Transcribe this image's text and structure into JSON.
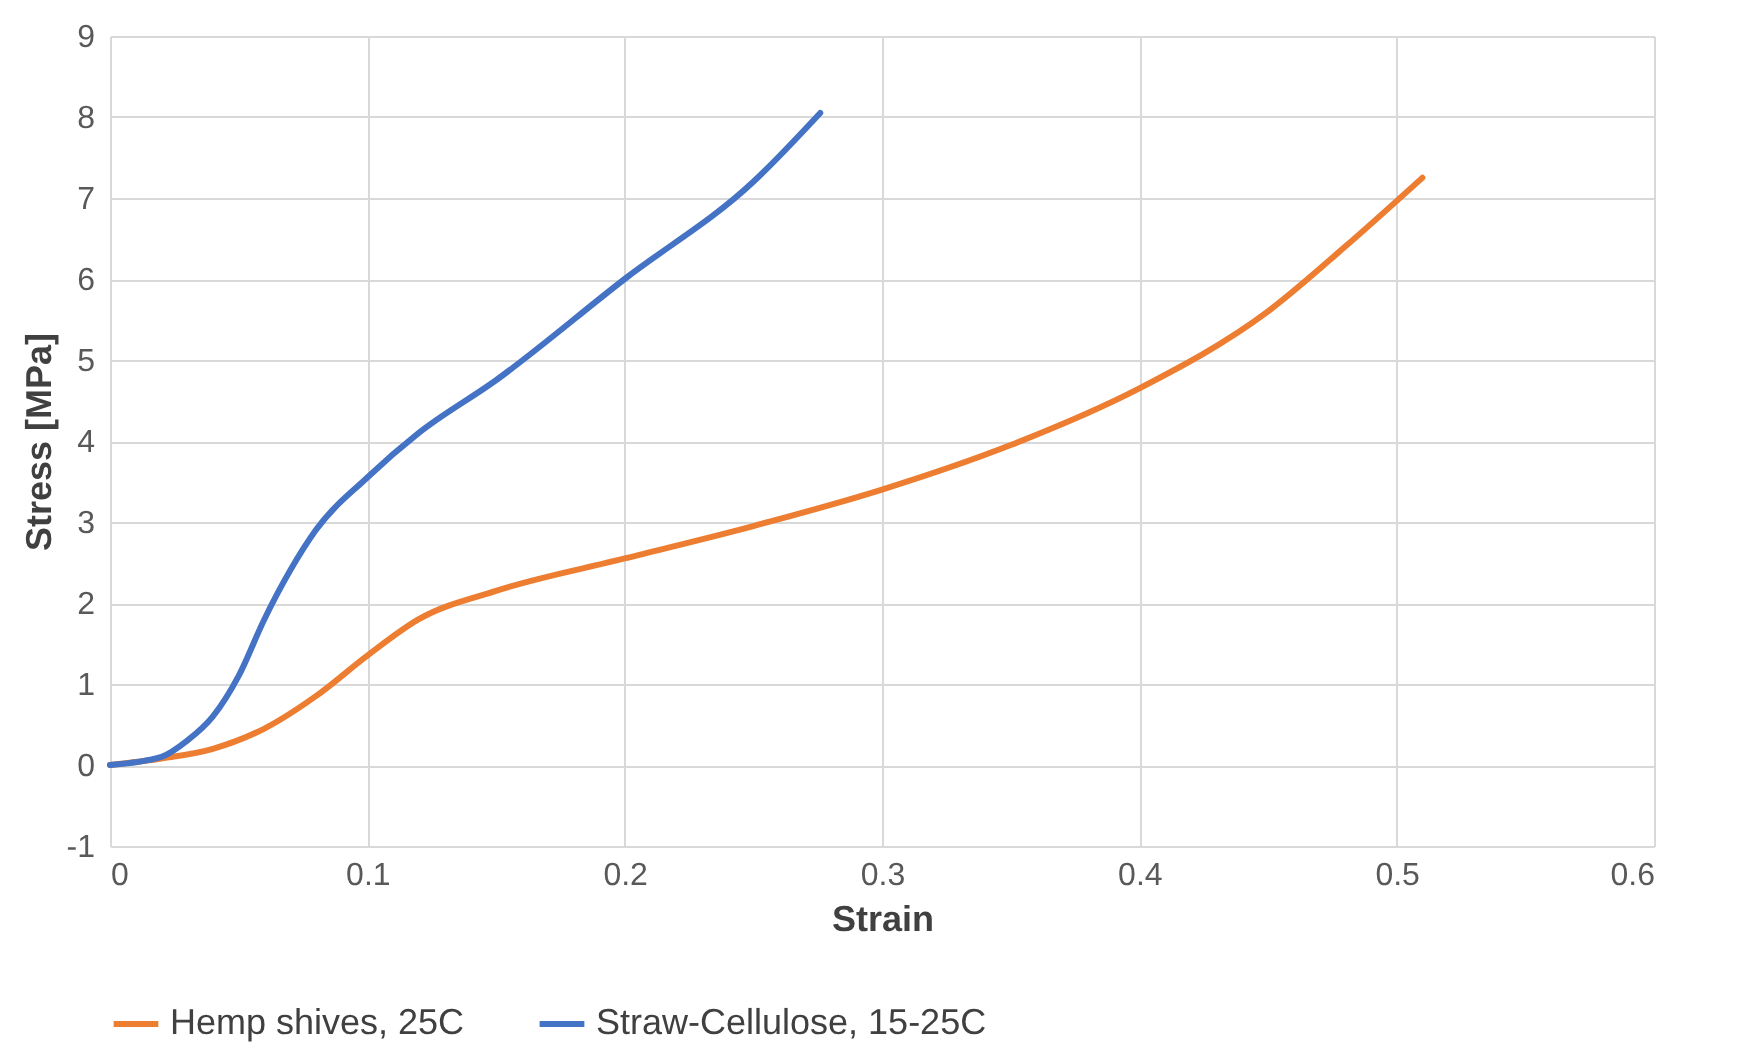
{
  "chart_data": {
    "type": "line",
    "xlabel": "Strain",
    "ylabel": "Stress [MPa]",
    "xlim": [
      0,
      0.6
    ],
    "xticks": [
      0,
      0.1,
      0.2,
      0.3,
      0.4,
      0.5,
      0.6
    ],
    "ylim": [
      -1,
      9
    ],
    "yticks": [
      -1,
      0,
      1,
      2,
      3,
      4,
      5,
      6,
      7,
      8,
      9
    ],
    "grid": true,
    "legend": "bottom",
    "marker": "none",
    "line_style": "solid",
    "series": [
      {
        "name": "Hemp shives, 25C",
        "color": "#ed7d31",
        "x": [
          0,
          0.02,
          0.04,
          0.06,
          0.08,
          0.1,
          0.12,
          0.15,
          0.2,
          0.25,
          0.3,
          0.35,
          0.4,
          0.45,
          0.48,
          0.51
        ],
        "values": [
          0,
          0.08,
          0.2,
          0.45,
          0.85,
          1.35,
          1.8,
          2.15,
          2.55,
          2.95,
          3.4,
          3.95,
          4.65,
          5.6,
          6.4,
          7.25
        ]
      },
      {
        "name": "Straw-Cellulose, 15-25C",
        "color": "#4472c4",
        "x": [
          0,
          0.02,
          0.03,
          0.04,
          0.05,
          0.06,
          0.07,
          0.08,
          0.1,
          0.12,
          0.15,
          0.2,
          0.25,
          0.276
        ],
        "values": [
          0,
          0.1,
          0.3,
          0.6,
          1.1,
          1.8,
          2.4,
          2.9,
          3.55,
          4.1,
          4.75,
          6.0,
          7.2,
          8.05
        ]
      }
    ]
  }
}
